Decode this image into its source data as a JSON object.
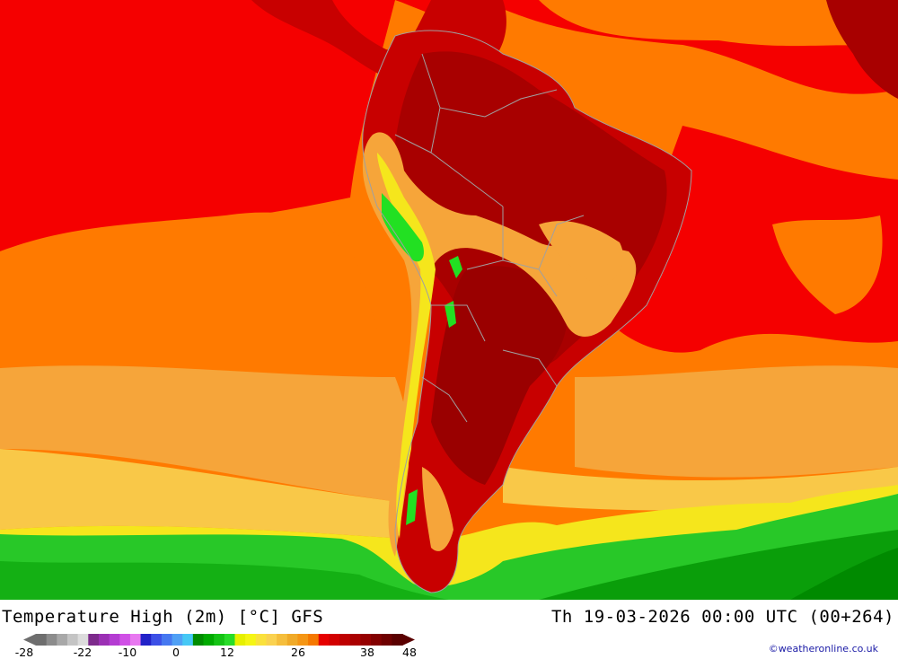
{
  "title": "Temperature High (2m) [°C] GFS",
  "valid_time": "Th 19-03-2026 00:00 UTC (00+264)",
  "credit": "©weatheronline.co.uk",
  "legend": {
    "ticks": [
      "-28",
      "-22",
      "-10",
      "0",
      "12",
      "26",
      "38",
      "48"
    ],
    "colors": [
      "#6e6e6e",
      "#8c8c8c",
      "#a8a8a8",
      "#c4c4c4",
      "#dcdcdc",
      "#7d2a8c",
      "#9b30b4",
      "#b43cd2",
      "#d050e6",
      "#e878f0",
      "#2222c8",
      "#3c50e6",
      "#4678f0",
      "#50a0f5",
      "#46c8f5",
      "#008c00",
      "#00aa00",
      "#14c314",
      "#28dc28",
      "#e6f000",
      "#f5f514",
      "#fae13c",
      "#fad250",
      "#f5be3c",
      "#f0aa28",
      "#f59614",
      "#f57800",
      "#e60000",
      "#d20000",
      "#be0000",
      "#aa0000",
      "#960000",
      "#820000",
      "#6e0000",
      "#5a0000"
    ]
  },
  "map": {
    "region": "South America",
    "palette": {
      "ocean_warm": "#f50000",
      "hot": "#c80000",
      "very_hot": "#a00000",
      "orange": "#ff7a00",
      "light_orange": "#f6a53a",
      "yellow": "#f5e61c",
      "green": "#1fb01f",
      "bright_green": "#22e022",
      "dark_green": "#008a00",
      "border": "#a0a0a0"
    }
  }
}
